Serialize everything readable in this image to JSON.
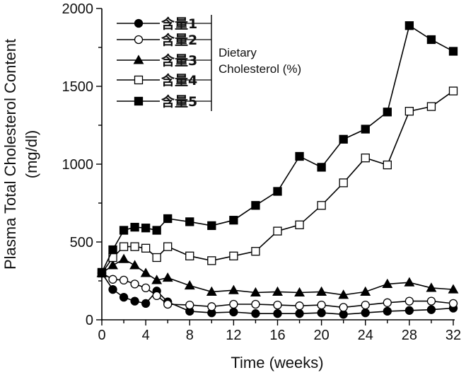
{
  "chart_data": {
    "type": "line",
    "title": "",
    "xlabel": "Time (weeks)",
    "ylabel_line1": "Plasma Total Cholesterol Content",
    "ylabel_line2": "(mg/dl)",
    "xlim": [
      0,
      32
    ],
    "ylim": [
      0,
      2000
    ],
    "xticks": [
      0,
      4,
      8,
      12,
      16,
      20,
      24,
      28,
      32
    ],
    "yticks": [
      0,
      500,
      1000,
      1500,
      2000
    ],
    "grid": false,
    "legend_position": "top-left",
    "legend_group_label_line1": "Dietary",
    "legend_group_label_line2": "Cholesterol (%)",
    "series": [
      {
        "name": "含量1",
        "marker": "circle-filled",
        "points": [
          [
            0,
            300
          ],
          [
            1,
            195
          ],
          [
            2,
            145
          ],
          [
            3,
            120
          ],
          [
            4,
            105
          ],
          [
            5,
            185
          ],
          [
            6,
            115
          ],
          [
            8,
            55
          ],
          [
            10,
            45
          ],
          [
            12,
            50
          ],
          [
            14,
            40
          ],
          [
            16,
            40
          ],
          [
            18,
            40
          ],
          [
            20,
            45
          ],
          [
            22,
            35
          ],
          [
            24,
            45
          ],
          [
            26,
            55
          ],
          [
            28,
            60
          ],
          [
            30,
            65
          ],
          [
            32,
            75
          ]
        ]
      },
      {
        "name": "含量2",
        "marker": "circle-open",
        "points": [
          [
            0,
            300
          ],
          [
            1,
            260
          ],
          [
            2,
            255
          ],
          [
            3,
            230
          ],
          [
            4,
            205
          ],
          [
            5,
            155
          ],
          [
            6,
            100
          ],
          [
            8,
            95
          ],
          [
            10,
            85
          ],
          [
            12,
            100
          ],
          [
            14,
            100
          ],
          [
            16,
            95
          ],
          [
            18,
            90
          ],
          [
            20,
            95
          ],
          [
            22,
            80
          ],
          [
            24,
            95
          ],
          [
            26,
            110
          ],
          [
            28,
            120
          ],
          [
            30,
            120
          ],
          [
            32,
            105
          ]
        ]
      },
      {
        "name": "含量3",
        "marker": "triangle-filled",
        "points": [
          [
            0,
            300
          ],
          [
            1,
            350
          ],
          [
            2,
            390
          ],
          [
            3,
            350
          ],
          [
            4,
            300
          ],
          [
            5,
            255
          ],
          [
            6,
            270
          ],
          [
            8,
            220
          ],
          [
            10,
            180
          ],
          [
            12,
            190
          ],
          [
            14,
            175
          ],
          [
            16,
            180
          ],
          [
            18,
            175
          ],
          [
            20,
            180
          ],
          [
            22,
            160
          ],
          [
            24,
            180
          ],
          [
            26,
            230
          ],
          [
            28,
            240
          ],
          [
            30,
            205
          ],
          [
            32,
            195
          ]
        ]
      },
      {
        "name": "含量4",
        "marker": "square-open",
        "points": [
          [
            0,
            300
          ],
          [
            1,
            400
          ],
          [
            2,
            470
          ],
          [
            3,
            470
          ],
          [
            4,
            460
          ],
          [
            5,
            400
          ],
          [
            6,
            470
          ],
          [
            8,
            410
          ],
          [
            10,
            380
          ],
          [
            12,
            410
          ],
          [
            14,
            440
          ],
          [
            16,
            570
          ],
          [
            18,
            610
          ],
          [
            20,
            735
          ],
          [
            22,
            880
          ],
          [
            24,
            1040
          ],
          [
            26,
            995
          ],
          [
            28,
            1340
          ],
          [
            30,
            1370
          ],
          [
            32,
            1470
          ]
        ]
      },
      {
        "name": "含量5",
        "marker": "square-filled",
        "points": [
          [
            0,
            305
          ],
          [
            1,
            450
          ],
          [
            2,
            575
          ],
          [
            3,
            595
          ],
          [
            4,
            590
          ],
          [
            5,
            575
          ],
          [
            6,
            650
          ],
          [
            8,
            630
          ],
          [
            10,
            605
          ],
          [
            12,
            640
          ],
          [
            14,
            735
          ],
          [
            16,
            825
          ],
          [
            18,
            1050
          ],
          [
            20,
            980
          ],
          [
            22,
            1160
          ],
          [
            24,
            1225
          ],
          [
            26,
            1335
          ],
          [
            28,
            1890
          ],
          [
            30,
            1800
          ],
          [
            32,
            1725
          ]
        ]
      }
    ]
  }
}
